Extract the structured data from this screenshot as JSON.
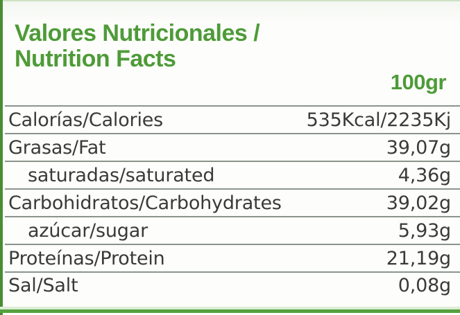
{
  "label": {
    "title_line1": "Valores Nutricionales /",
    "title_line2": "Nutrition Facts",
    "serving": "100gr"
  },
  "colors": {
    "accent_green": "#4e9b38",
    "left_bar_green": "#4a8c33",
    "bottom_band_green": "#55a03e",
    "separator_gray": "#8a948a",
    "row_text": "#3a3a3a"
  },
  "table": {
    "rows": [
      {
        "label": "Calorías/Calories",
        "value": "535Kcal/2235Kj"
      },
      {
        "label": "Grasas/Fat",
        "value": "39,07g"
      },
      {
        "label": "saturadas/saturated",
        "value": "4,36g"
      },
      {
        "label": "Carbohidratos/Carbohydrates",
        "value": "39,02g"
      },
      {
        "label": "azúcar/sugar",
        "value": "5,93g"
      },
      {
        "label": "Proteínas/Protein",
        "value": "21,19g"
      },
      {
        "label": "Sal/Salt",
        "value": "0,08g"
      }
    ]
  }
}
